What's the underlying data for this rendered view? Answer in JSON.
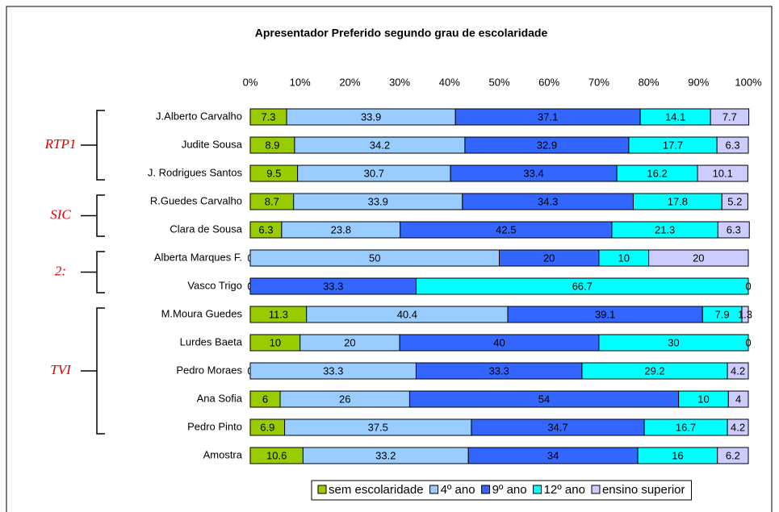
{
  "chart_data": {
    "type": "stacked_barh",
    "title": "Apresentador Preferido segundo grau de escolaridade",
    "categories": [
      "J.Alberto Carvalho",
      "Judite Sousa",
      "J. Rodrigues Santos",
      "R.Guedes Carvalho",
      "Clara de Sousa",
      "Alberta Marques F.",
      "Vasco Trigo",
      "M.Moura Guedes",
      "Lurdes Baeta",
      "Pedro Moraes",
      "Ana Sofia",
      "Pedro Pinto",
      "Amostra"
    ],
    "series": [
      {
        "name": "sem escolaridade",
        "color": "#99cc00",
        "values": [
          7.3,
          8.9,
          9.5,
          8.7,
          6.3,
          0,
          0,
          11.3,
          10,
          0,
          6,
          6.9,
          10.6
        ]
      },
      {
        "name": "4º ano",
        "color": "#99ccff",
        "values": [
          33.9,
          34.2,
          30.7,
          33.9,
          23.8,
          50,
          0,
          40.4,
          20,
          33.3,
          26,
          37.5,
          33.2
        ]
      },
      {
        "name": "9º ano",
        "color": "#3366ff",
        "values": [
          37.1,
          32.9,
          33.4,
          34.3,
          42.5,
          20,
          33.3,
          39.1,
          40,
          33.3,
          54,
          34.7,
          34
        ]
      },
      {
        "name": "12º ano",
        "color": "#00ffff",
        "values": [
          14.1,
          17.7,
          16.2,
          17.8,
          21.3,
          10,
          66.7,
          7.9,
          30,
          29.2,
          10,
          16.7,
          16
        ]
      },
      {
        "name": "ensino superior",
        "color": "#ccccff",
        "values": [
          7.7,
          6.3,
          10.1,
          5.2,
          6.3,
          20,
          0,
          1.3,
          0,
          4.2,
          4,
          4.2,
          6.2
        ]
      }
    ],
    "xlim": [
      0,
      100
    ],
    "xticks": [
      {
        "value": 0,
        "label": "0%"
      },
      {
        "value": 10,
        "label": "10%"
      },
      {
        "value": 20,
        "label": "20%"
      },
      {
        "value": 30,
        "label": "30%"
      },
      {
        "value": 40,
        "label": "40%"
      },
      {
        "value": 50,
        "label": "50%"
      },
      {
        "value": 60,
        "label": "60%"
      },
      {
        "value": 70,
        "label": "70%"
      },
      {
        "value": 80,
        "label": "80%"
      },
      {
        "value": 90,
        "label": "90%"
      },
      {
        "value": 100,
        "label": "100%"
      }
    ],
    "annotations": [
      "RTP1",
      "SIC",
      "2:",
      "TVI"
    ],
    "legend": "bottom"
  }
}
